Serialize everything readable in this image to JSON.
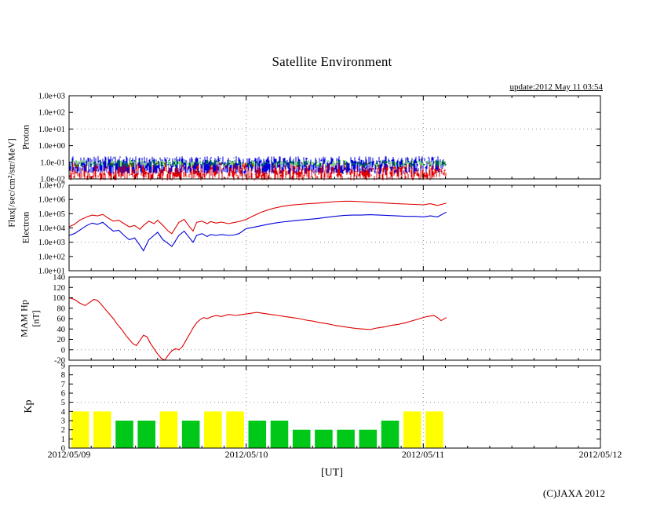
{
  "page": {
    "title": "Satellite Environment",
    "update_text": "update:2012 May 11 03:54",
    "xlabel": "[UT]",
    "copyright": "(C)JAXA 2012",
    "flux_axis_label": "Flux[/sec/cm²/str/MeV]"
  },
  "x_axis": {
    "tick_labels": [
      "2012/05/09",
      "2012/05/10",
      "2012/05/11",
      "2012/05/12"
    ],
    "span_days": 3,
    "minor_tick_hours": 3
  },
  "chart_data": [
    {
      "id": "proton-flux",
      "type": "line",
      "appearance": "dense-noise-band",
      "ylabel": "Proton",
      "yscale": "log",
      "ylim": [
        0.01,
        1000
      ],
      "yticks": [
        1000,
        100,
        10,
        1,
        0.1,
        0.01
      ],
      "ytick_labels": [
        "1.0e+03",
        "1.0e+02",
        "1.0e+01",
        "1.0e+00",
        "1.0e-01",
        "1.0e-02"
      ],
      "threshold": 10,
      "x_end_days": 2.13,
      "series": [
        {
          "name": "proton-red",
          "color": "#e00000",
          "band": [
            0.008,
            0.09
          ],
          "seed": 11,
          "step": 1
        },
        {
          "name": "proton-blue",
          "color": "#0000dd",
          "band": [
            0.02,
            0.22
          ],
          "seed": 22,
          "step": 1
        },
        {
          "name": "proton-green",
          "color": "#00a800",
          "band": [
            0.05,
            0.13
          ],
          "seed": 33,
          "step": 2
        }
      ]
    },
    {
      "id": "electron-flux",
      "type": "line",
      "ylabel": "Electron",
      "yscale": "log",
      "ylim": [
        10,
        10000000.0
      ],
      "yticks": [
        10000000.0,
        1000000.0,
        100000.0,
        10000.0,
        1000.0,
        100.0,
        10.0
      ],
      "ytick_labels": [
        "1.0e+07",
        "1.0e+06",
        "1.0e+05",
        "1.0e+04",
        "1.0e+03",
        "1.0e+02",
        "1.0e+01"
      ],
      "threshold": 1000,
      "series": [
        {
          "name": "electron-red",
          "color": "#e00000",
          "points": [
            [
              0.0,
              12000
            ],
            [
              0.03,
              18000
            ],
            [
              0.06,
              35000
            ],
            [
              0.1,
              60000
            ],
            [
              0.13,
              80000
            ],
            [
              0.16,
              70000
            ],
            [
              0.19,
              90000
            ],
            [
              0.22,
              50000
            ],
            [
              0.25,
              30000
            ],
            [
              0.28,
              35000
            ],
            [
              0.31,
              20000
            ],
            [
              0.34,
              12000
            ],
            [
              0.37,
              15000
            ],
            [
              0.4,
              8000
            ],
            [
              0.42,
              15000
            ],
            [
              0.45,
              30000
            ],
            [
              0.48,
              20000
            ],
            [
              0.5,
              35000
            ],
            [
              0.53,
              15000
            ],
            [
              0.56,
              6000
            ],
            [
              0.58,
              4000
            ],
            [
              0.6,
              10000
            ],
            [
              0.62,
              25000
            ],
            [
              0.65,
              40000
            ],
            [
              0.68,
              12000
            ],
            [
              0.7,
              6000
            ],
            [
              0.72,
              25000
            ],
            [
              0.75,
              30000
            ],
            [
              0.78,
              20000
            ],
            [
              0.8,
              28000
            ],
            [
              0.83,
              22000
            ],
            [
              0.86,
              26000
            ],
            [
              0.9,
              20000
            ],
            [
              0.93,
              24000
            ],
            [
              0.96,
              28000
            ],
            [
              1.0,
              40000
            ],
            [
              1.04,
              70000
            ],
            [
              1.08,
              120000
            ],
            [
              1.12,
              180000
            ],
            [
              1.16,
              250000
            ],
            [
              1.2,
              320000
            ],
            [
              1.25,
              400000
            ],
            [
              1.3,
              450000
            ],
            [
              1.35,
              500000
            ],
            [
              1.4,
              550000
            ],
            [
              1.45,
              620000
            ],
            [
              1.5,
              700000
            ],
            [
              1.55,
              750000
            ],
            [
              1.6,
              750000
            ],
            [
              1.65,
              700000
            ],
            [
              1.7,
              650000
            ],
            [
              1.75,
              600000
            ],
            [
              1.8,
              550000
            ],
            [
              1.85,
              500000
            ],
            [
              1.9,
              480000
            ],
            [
              1.95,
              450000
            ],
            [
              2.0,
              420000
            ],
            [
              2.04,
              500000
            ],
            [
              2.08,
              380000
            ],
            [
              2.13,
              550000
            ]
          ]
        },
        {
          "name": "electron-blue",
          "color": "#0000dd",
          "points": [
            [
              0.0,
              3000
            ],
            [
              0.03,
              4000
            ],
            [
              0.06,
              7000
            ],
            [
              0.1,
              15000
            ],
            [
              0.13,
              22000
            ],
            [
              0.16,
              18000
            ],
            [
              0.19,
              25000
            ],
            [
              0.22,
              12000
            ],
            [
              0.25,
              6000
            ],
            [
              0.28,
              7000
            ],
            [
              0.31,
              3000
            ],
            [
              0.34,
              1500
            ],
            [
              0.37,
              2000
            ],
            [
              0.4,
              600
            ],
            [
              0.42,
              250
            ],
            [
              0.45,
              1500
            ],
            [
              0.48,
              3000
            ],
            [
              0.5,
              5000
            ],
            [
              0.53,
              1500
            ],
            [
              0.56,
              800
            ],
            [
              0.58,
              500
            ],
            [
              0.6,
              1200
            ],
            [
              0.62,
              3000
            ],
            [
              0.65,
              6000
            ],
            [
              0.68,
              2000
            ],
            [
              0.7,
              1000
            ],
            [
              0.72,
              3000
            ],
            [
              0.75,
              4000
            ],
            [
              0.78,
              2500
            ],
            [
              0.8,
              3500
            ],
            [
              0.83,
              3000
            ],
            [
              0.86,
              3500
            ],
            [
              0.9,
              3000
            ],
            [
              0.93,
              3200
            ],
            [
              0.96,
              4000
            ],
            [
              1.0,
              9000
            ],
            [
              1.04,
              11000
            ],
            [
              1.08,
              14000
            ],
            [
              1.12,
              18000
            ],
            [
              1.16,
              22000
            ],
            [
              1.2,
              26000
            ],
            [
              1.25,
              30000
            ],
            [
              1.3,
              35000
            ],
            [
              1.35,
              40000
            ],
            [
              1.4,
              45000
            ],
            [
              1.45,
              55000
            ],
            [
              1.5,
              65000
            ],
            [
              1.55,
              75000
            ],
            [
              1.6,
              80000
            ],
            [
              1.65,
              80000
            ],
            [
              1.7,
              85000
            ],
            [
              1.75,
              80000
            ],
            [
              1.8,
              75000
            ],
            [
              1.85,
              70000
            ],
            [
              1.9,
              65000
            ],
            [
              1.95,
              65000
            ],
            [
              2.0,
              60000
            ],
            [
              2.04,
              70000
            ],
            [
              2.08,
              60000
            ],
            [
              2.13,
              130000
            ]
          ]
        }
      ]
    },
    {
      "id": "mam-hp",
      "type": "line",
      "ylabel": "MAM Hp",
      "ylabel2": "[nT]",
      "yscale": "linear",
      "ylim": [
        -20,
        140
      ],
      "yticks": [
        140,
        120,
        100,
        80,
        60,
        40,
        20,
        0,
        -20
      ],
      "ytick_labels": [
        "140",
        "120",
        "100",
        "80",
        "60",
        "40",
        "20",
        "0",
        "-20"
      ],
      "threshold": 0,
      "series": [
        {
          "name": "mam-hp-red",
          "color": "#e00000",
          "points": [
            [
              0.0,
              100
            ],
            [
              0.03,
              97
            ],
            [
              0.06,
              90
            ],
            [
              0.09,
              85
            ],
            [
              0.12,
              92
            ],
            [
              0.14,
              97
            ],
            [
              0.16,
              95
            ],
            [
              0.18,
              88
            ],
            [
              0.2,
              80
            ],
            [
              0.22,
              72
            ],
            [
              0.25,
              60
            ],
            [
              0.27,
              50
            ],
            [
              0.3,
              38
            ],
            [
              0.32,
              28
            ],
            [
              0.34,
              20
            ],
            [
              0.36,
              12
            ],
            [
              0.38,
              8
            ],
            [
              0.4,
              18
            ],
            [
              0.42,
              28
            ],
            [
              0.44,
              25
            ],
            [
              0.46,
              12
            ],
            [
              0.48,
              2
            ],
            [
              0.5,
              -8
            ],
            [
              0.52,
              -16
            ],
            [
              0.54,
              -20
            ],
            [
              0.56,
              -10
            ],
            [
              0.58,
              -2
            ],
            [
              0.6,
              2
            ],
            [
              0.62,
              0
            ],
            [
              0.64,
              6
            ],
            [
              0.66,
              18
            ],
            [
              0.68,
              30
            ],
            [
              0.7,
              42
            ],
            [
              0.72,
              52
            ],
            [
              0.74,
              58
            ],
            [
              0.76,
              62
            ],
            [
              0.78,
              60
            ],
            [
              0.8,
              63
            ],
            [
              0.83,
              66
            ],
            [
              0.86,
              64
            ],
            [
              0.9,
              68
            ],
            [
              0.94,
              66
            ],
            [
              0.98,
              68
            ],
            [
              1.02,
              70
            ],
            [
              1.06,
              72
            ],
            [
              1.1,
              70
            ],
            [
              1.14,
              68
            ],
            [
              1.18,
              66
            ],
            [
              1.22,
              64
            ],
            [
              1.26,
              62
            ],
            [
              1.3,
              60
            ],
            [
              1.34,
              57
            ],
            [
              1.38,
              55
            ],
            [
              1.42,
              52
            ],
            [
              1.46,
              50
            ],
            [
              1.5,
              47
            ],
            [
              1.54,
              45
            ],
            [
              1.58,
              43
            ],
            [
              1.62,
              41
            ],
            [
              1.66,
              40
            ],
            [
              1.7,
              39
            ],
            [
              1.74,
              42
            ],
            [
              1.78,
              44
            ],
            [
              1.82,
              47
            ],
            [
              1.86,
              49
            ],
            [
              1.9,
              52
            ],
            [
              1.94,
              56
            ],
            [
              1.98,
              60
            ],
            [
              2.02,
              64
            ],
            [
              2.06,
              66
            ],
            [
              2.08,
              62
            ],
            [
              2.1,
              56
            ],
            [
              2.13,
              62
            ]
          ]
        }
      ]
    },
    {
      "id": "kp-index",
      "type": "bar",
      "ylabel": "Kp",
      "yscale": "linear",
      "ylim": [
        0,
        9
      ],
      "yticks": [
        9,
        8,
        7,
        6,
        5,
        4,
        3,
        2,
        1,
        0
      ],
      "ytick_labels": [
        "9",
        "8",
        "7",
        "6",
        "5",
        "4",
        "3",
        "2",
        "1",
        "0"
      ],
      "threshold": 5,
      "bar_hours": 3,
      "values": [
        4,
        4,
        3,
        3,
        4,
        3,
        4,
        4,
        3,
        3,
        2,
        2,
        2,
        2,
        3,
        4,
        4
      ],
      "color_threshold": 4,
      "colors": {
        "high": "#ffff00",
        "low": "#00c818"
      }
    }
  ]
}
